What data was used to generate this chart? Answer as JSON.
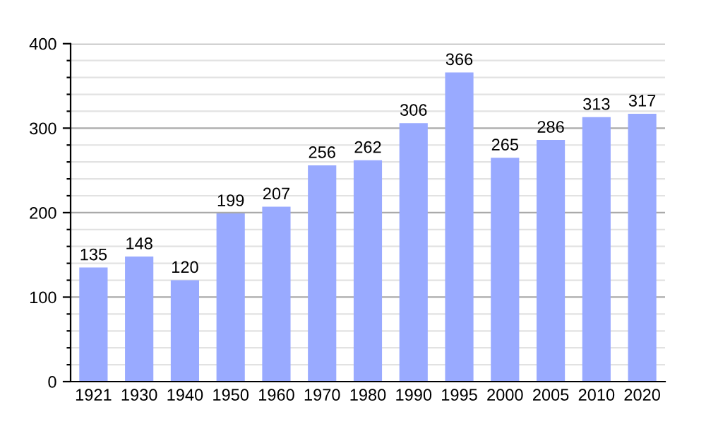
{
  "chart_data": {
    "type": "bar",
    "categories": [
      "1921",
      "1930",
      "1940",
      "1950",
      "1960",
      "1970",
      "1980",
      "1990",
      "1995",
      "2000",
      "2005",
      "2010",
      "2020"
    ],
    "values": [
      135,
      148,
      120,
      199,
      207,
      256,
      262,
      306,
      366,
      265,
      286,
      313,
      317
    ],
    "color": "#99aaff",
    "ylim": [
      0,
      400
    ],
    "yticks": [
      0,
      {
        "value": 20,
        "label": null
      },
      {
        "value": 40,
        "label": null
      },
      {
        "value": 60,
        "label": null
      },
      {
        "value": 80,
        "label": null
      },
      100,
      {
        "value": 120,
        "label": null
      },
      {
        "value": 140,
        "label": null
      },
      {
        "value": 160,
        "label": null
      },
      {
        "value": 180,
        "label": null
      },
      200,
      {
        "value": 220,
        "label": null
      },
      {
        "value": 240,
        "label": null
      },
      {
        "value": 260,
        "label": null
      },
      {
        "value": 280,
        "label": null
      },
      300,
      {
        "value": 320,
        "label": null
      },
      {
        "value": 340,
        "label": null
      },
      {
        "value": 360,
        "label": null
      },
      {
        "value": 380,
        "label": null
      },
      400
    ],
    "grid": "y",
    "data_labels": true
  }
}
